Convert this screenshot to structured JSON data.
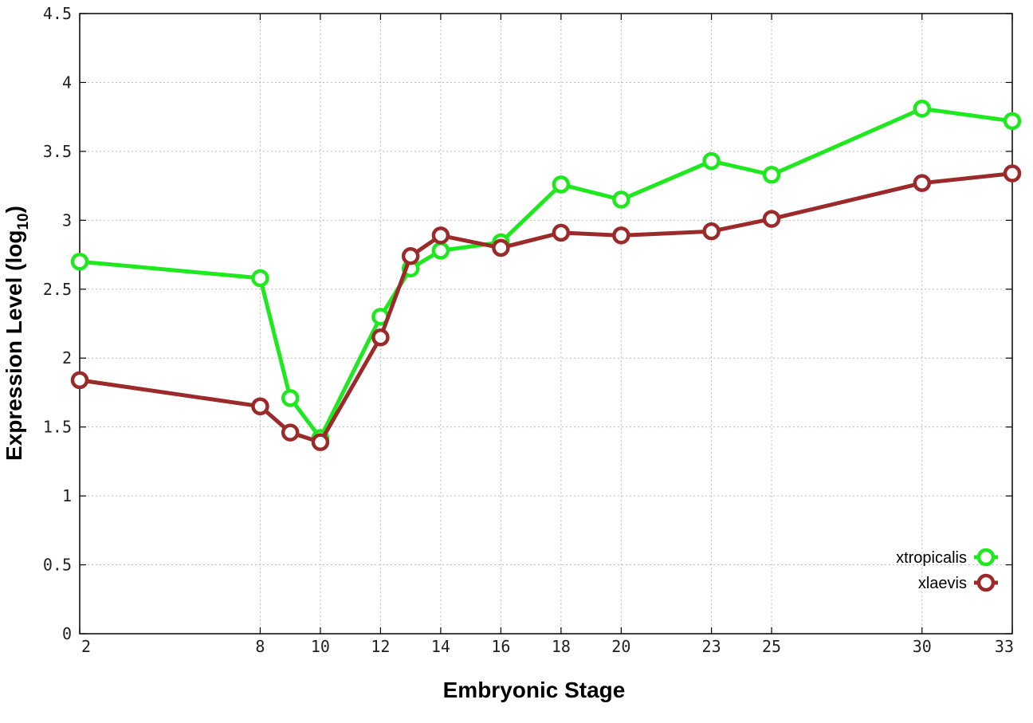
{
  "chart_data": {
    "type": "line",
    "xlabel": "Embryonic Stage",
    "ylabel": "Expression Level (log",
    "ylabel_sub": "10",
    "ylabel_close": ")",
    "ylim": [
      0,
      4.5
    ],
    "yticks": [
      0,
      0.5,
      1,
      1.5,
      2,
      2.5,
      3,
      3.5,
      4,
      4.5
    ],
    "ytick_labels": [
      "0",
      "0.5",
      "1",
      "1.5",
      "2",
      "2.5",
      "3",
      "3.5",
      "4",
      "4.5"
    ],
    "x_categories": [
      "2",
      "8",
      "9",
      "10",
      "12",
      "13",
      "14",
      "16",
      "18",
      "20",
      "23",
      "25",
      "30",
      "33"
    ],
    "xtick_labels": [
      "2",
      "8",
      "10",
      "12",
      "14",
      "16",
      "18",
      "20",
      "23",
      "25",
      "30",
      "33"
    ],
    "grid": true,
    "legend_position": "bottom-right",
    "series": [
      {
        "name": "xtropicalis",
        "color": "#1ee81e",
        "values": [
          2.7,
          2.58,
          1.71,
          1.42,
          2.3,
          2.65,
          2.78,
          2.84,
          3.26,
          3.15,
          3.43,
          3.33,
          3.81,
          3.72
        ]
      },
      {
        "name": "xlaevis",
        "color": "#9b2a2a",
        "values": [
          1.84,
          1.65,
          1.46,
          1.39,
          2.15,
          2.74,
          2.89,
          2.8,
          2.91,
          2.89,
          2.92,
          3.01,
          3.27,
          3.34
        ]
      }
    ]
  }
}
